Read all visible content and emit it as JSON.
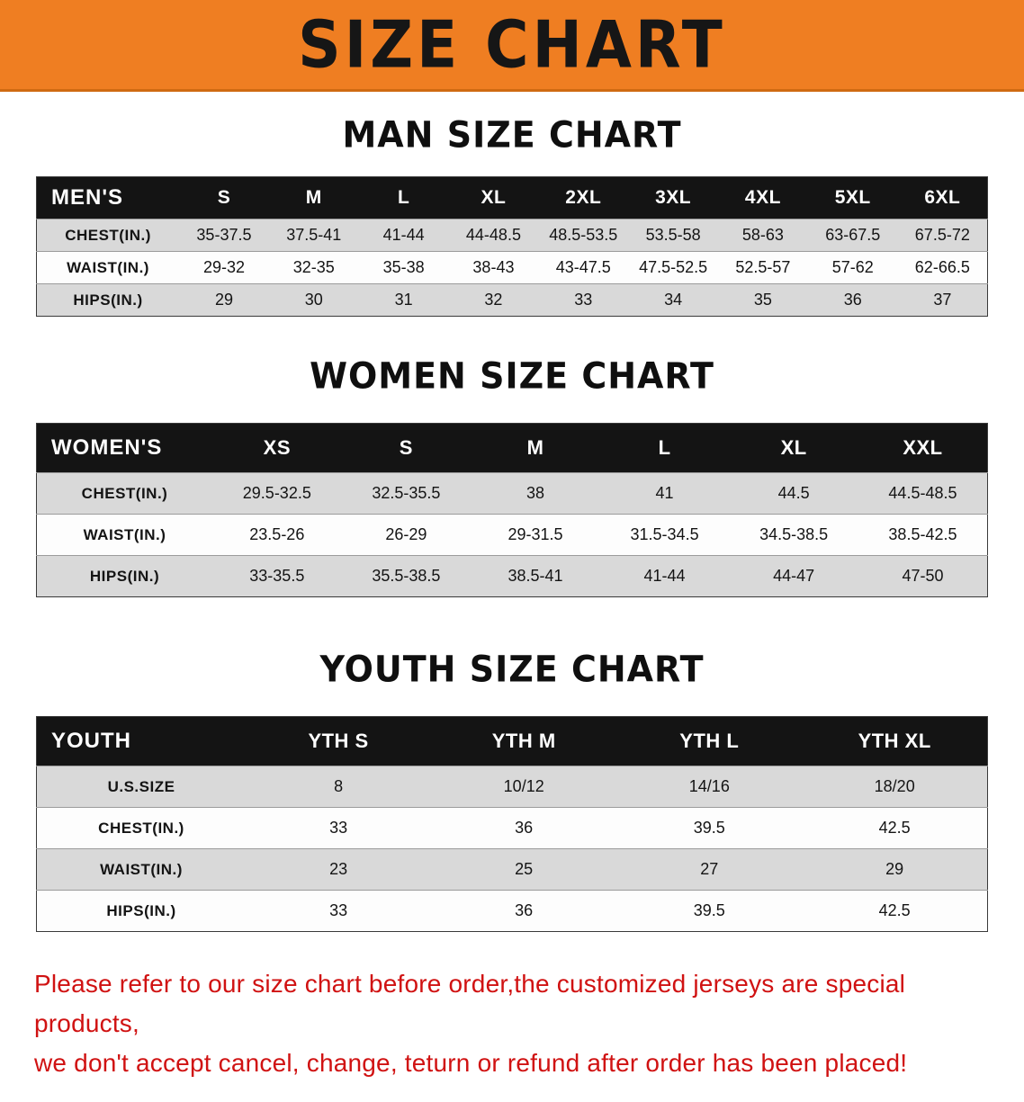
{
  "banner": {
    "title": "SIZE CHART",
    "background_color": "#ef7e22",
    "text_color": "#161616"
  },
  "men": {
    "heading": "MAN SIZE CHART",
    "header": [
      "MEN'S",
      "S",
      "M",
      "L",
      "XL",
      "2XL",
      "3XL",
      "4XL",
      "5XL",
      "6XL"
    ],
    "rows": [
      [
        "CHEST(IN.)",
        "35-37.5",
        "37.5-41",
        "41-44",
        "44-48.5",
        "48.5-53.5",
        "53.5-58",
        "58-63",
        "63-67.5",
        "67.5-72"
      ],
      [
        "WAIST(IN.)",
        "29-32",
        "32-35",
        "35-38",
        "38-43",
        "43-47.5",
        "47.5-52.5",
        "52.5-57",
        "57-62",
        "62-66.5"
      ],
      [
        "HIPS(IN.)",
        "29",
        "30",
        "31",
        "32",
        "33",
        "34",
        "35",
        "36",
        "37"
      ]
    ]
  },
  "women": {
    "heading": "WOMEN SIZE CHART",
    "header": [
      "WOMEN'S",
      "XS",
      "S",
      "M",
      "L",
      "XL",
      "XXL"
    ],
    "rows": [
      [
        "CHEST(IN.)",
        "29.5-32.5",
        "32.5-35.5",
        "38",
        "41",
        "44.5",
        "44.5-48.5"
      ],
      [
        "WAIST(IN.)",
        "23.5-26",
        "26-29",
        "29-31.5",
        "31.5-34.5",
        "34.5-38.5",
        "38.5-42.5"
      ],
      [
        "HIPS(IN.)",
        "33-35.5",
        "35.5-38.5",
        "38.5-41",
        "41-44",
        "44-47",
        "47-50"
      ]
    ]
  },
  "youth": {
    "heading": "YOUTH SIZE CHART",
    "header": [
      "YOUTH",
      "YTH S",
      "YTH M",
      "YTH L",
      "YTH XL"
    ],
    "rows": [
      [
        "U.S.SIZE",
        "8",
        "10/12",
        "14/16",
        "18/20"
      ],
      [
        "CHEST(IN.)",
        "33",
        "36",
        "39.5",
        "42.5"
      ],
      [
        "WAIST(IN.)",
        "23",
        "25",
        "27",
        "29"
      ],
      [
        "HIPS(IN.)",
        "33",
        "36",
        "39.5",
        "42.5"
      ]
    ]
  },
  "disclaimer": {
    "line1": "Please refer to our size chart before order,the customized jerseys are special products,",
    "line2": "we don't accept cancel, change, teturn or refund after order has been placed!",
    "text_color": "#d01212"
  }
}
